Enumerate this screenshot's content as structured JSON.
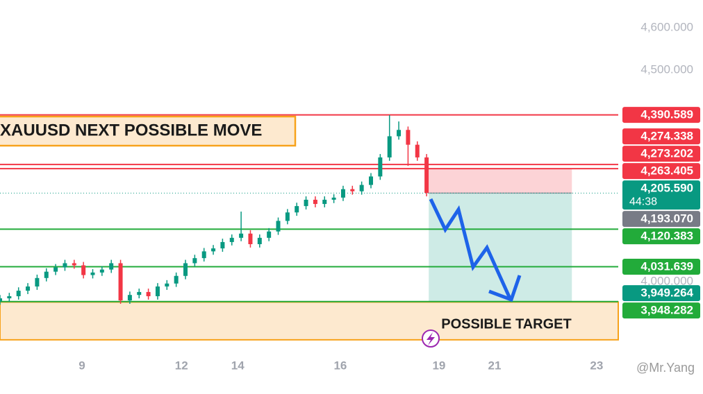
{
  "chart_data": {
    "type": "candlestick",
    "title": "XAUUSD NEXT POSSIBLE MOVE",
    "annotation": "POSSIBLE TARGET",
    "watermark": "@Mr.Yang",
    "up_color": "#089981",
    "down_color": "#f23645",
    "xlim": [
      0,
      200
    ],
    "ylim": [
      3826,
      4662
    ],
    "xticks": [
      {
        "value": 26.5,
        "label": "9"
      },
      {
        "value": 58.7,
        "label": "12"
      },
      {
        "value": 76.9,
        "label": "14"
      },
      {
        "value": 110.1,
        "label": "16"
      },
      {
        "value": 142,
        "label": "19"
      },
      {
        "value": 160,
        "label": "21"
      },
      {
        "value": 193,
        "label": "23"
      }
    ],
    "yticks": [
      {
        "value": 4600,
        "label": "4,600.000"
      },
      {
        "value": 4500,
        "label": "4,500.000"
      },
      {
        "value": 4000,
        "label": "4,000.000"
      }
    ],
    "x": [
      0,
      3,
      6,
      9,
      12,
      15,
      18,
      21,
      24,
      27,
      30,
      33,
      36,
      39,
      42,
      45,
      48,
      51,
      54,
      57,
      60,
      63,
      66,
      69,
      72,
      75,
      78,
      81,
      84,
      87,
      90,
      93,
      96,
      99,
      102,
      105,
      108,
      111,
      114,
      117,
      120,
      123,
      126,
      129,
      132,
      135,
      138
    ],
    "open": [
      3950,
      3957,
      3962,
      3975,
      3985,
      4005,
      4020,
      4030,
      4040,
      4035,
      4012,
      4018,
      4025,
      4040,
      3952,
      3965,
      3972,
      3962,
      3985,
      3992,
      4010,
      4040,
      4052,
      4068,
      4075,
      4090,
      4100,
      4110,
      4085,
      4100,
      4115,
      4140,
      4160,
      4175,
      4190,
      4180,
      4190,
      4195,
      4215,
      4210,
      4225,
      4245,
      4290,
      4340,
      4355,
      4320,
      4290
    ],
    "high": [
      3965,
      3970,
      3983,
      3993,
      4013,
      4028,
      4038,
      4048,
      4048,
      4043,
      4026,
      4033,
      4048,
      4048,
      3973,
      3980,
      3980,
      3993,
      4000,
      4018,
      4048,
      4060,
      4076,
      4083,
      4098,
      4108,
      4162,
      4118,
      4108,
      4123,
      4148,
      4168,
      4183,
      4198,
      4198,
      4198,
      4203,
      4223,
      4223,
      4233,
      4253,
      4298,
      4390,
      4375,
      4363,
      4328,
      4298
    ],
    "low": [
      3942,
      3949,
      3954,
      3967,
      3977,
      3997,
      4012,
      4022,
      4027,
      4004,
      4004,
      4010,
      4017,
      3944,
      3944,
      3957,
      3954,
      3954,
      3977,
      3984,
      4002,
      4032,
      4044,
      4060,
      4067,
      4082,
      4092,
      4077,
      4077,
      4092,
      4107,
      4132,
      4152,
      4167,
      4172,
      4172,
      4182,
      4187,
      4202,
      4202,
      4217,
      4237,
      4282,
      4332,
      4270,
      4282,
      4198
    ],
    "close": [
      3957,
      3962,
      3975,
      3985,
      4005,
      4020,
      4030,
      4040,
      4035,
      4012,
      4018,
      4025,
      4040,
      3952,
      3965,
      3972,
      3962,
      3985,
      3992,
      4010,
      4040,
      4052,
      4068,
      4075,
      4090,
      4100,
      4110,
      4085,
      4100,
      4115,
      4140,
      4160,
      4175,
      4190,
      4180,
      4190,
      4195,
      4215,
      4210,
      4225,
      4245,
      4290,
      4340,
      4355,
      4320,
      4290,
      4206
    ],
    "levels": [
      {
        "value": 4390.589,
        "color": "#f23645"
      },
      {
        "value": 4273.202,
        "color": "#f23645"
      },
      {
        "value": 4263.405,
        "color": "#f23645"
      },
      {
        "value": 4120.383,
        "color": "#22ab3a"
      },
      {
        "value": 4031.639,
        "color": "#22ab3a"
      },
      {
        "value": 3949.264,
        "color": "#22ab3a"
      }
    ],
    "current_price": {
      "value": 4205.59,
      "color": "#089981"
    },
    "position": {
      "x": [
        138.7,
        185
      ],
      "entry": 4205.59,
      "stop": 4263.405,
      "target": 3949.264
    },
    "zone": {
      "from": 3859,
      "to": 3948.282,
      "color": "#f7a21b"
    },
    "price_labels": [
      {
        "value": 4390.589,
        "label": "4,390.589",
        "color": "#f23645"
      },
      {
        "value": 4274.338,
        "label": "4,274.338",
        "color": "#f23645"
      },
      {
        "value": 4273.202,
        "label": "4,273.202",
        "color": "#f23645"
      },
      {
        "value": 4263.405,
        "label": "4,263.405",
        "color": "#f23645"
      },
      {
        "value": 4205.59,
        "label": "4,205.590",
        "sub": "44:38",
        "color": "#089981"
      },
      {
        "value": 4193.07,
        "label": "4,193.070",
        "color": "#787b86"
      },
      {
        "value": 4120.383,
        "label": "4,120.383",
        "color": "#22ab3a"
      },
      {
        "value": 4031.639,
        "label": "4,031.639",
        "color": "#22ab3a"
      },
      {
        "value": 3949.264,
        "label": "3,949.264",
        "color": "#089981"
      },
      {
        "value": 3948.282,
        "label": "3,948.282",
        "color": "#22ab3a"
      }
    ]
  }
}
